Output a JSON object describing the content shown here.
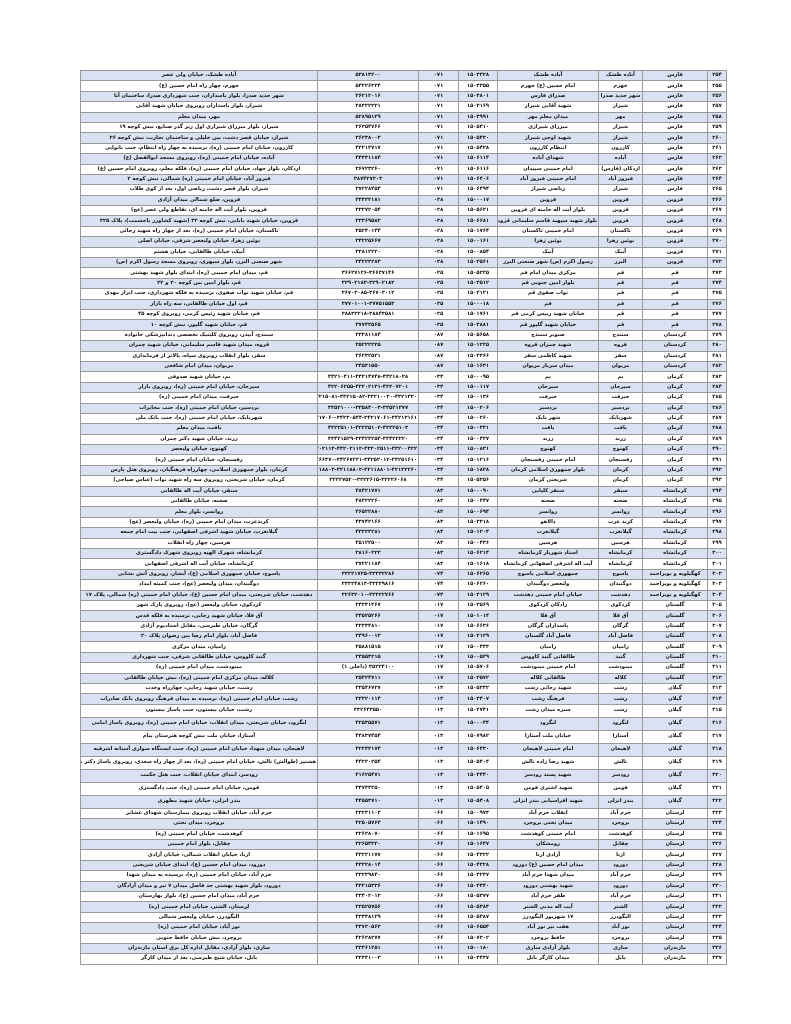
{
  "columns": [
    "row",
    "province",
    "city",
    "branch",
    "branch_code",
    "area_code",
    "phone",
    "address"
  ],
  "colors": {
    "row_shade": "#d9e1f2",
    "border": "#9a9a9a"
  },
  "rows": [
    [
      "۲۵۴",
      "فارس",
      "آباده طشک",
      "آباده طشک",
      "۱۵۰۳۳۲۸",
      "۰۷۱",
      "۵۳۸۱۳۲۰۰",
      "آباده طشک، خیابان ولی عصر"
    ],
    [
      "۲۵۵",
      "فارس",
      "جهرم",
      "امام حسین (ع) جهرم",
      "۱۵۰۳۳۵۵",
      "۰۷۱",
      "۵۴۲۲۶۳۲۴",
      "جهرم، چهار راه امام حسین (ع)"
    ],
    [
      "۲۵۶",
      "فارس",
      "شهر جدید صدرا",
      "صدرای فارس",
      "۱۵۰۳۸۰۱",
      "۰۷۱",
      "۳۶۲۱۲۰۱۶",
      "شهر جدید صدرا، بلوار پاسداران، جنب شهرداری صدرا، ساختمان آتا"
    ],
    [
      "۲۵۷",
      "فارس",
      "شیراز",
      "شهید آقایی شیراز",
      "۱۵۰۳۱۶۹",
      "۰۷۱",
      "۳۸۳۲۲۳۲۱",
      "شیراز، بلوار پاسداران روبروی خیابان شهید آقایی"
    ],
    [
      "۲۵۸",
      "فارس",
      "مهر",
      "میدان معلم مهر",
      "۱۵۰۳۹۹۱",
      "۰۷۱",
      "۵۲۸۹۵۱۲۹",
      "مهر، میدان معلم"
    ],
    [
      "۲۵۹",
      "فارس",
      "شیراز",
      "میرزای شیرازی",
      "۱۵۰۵۴۱۰",
      "۰۷۱",
      "۳۶۳۵۴۷۶۶",
      "شیراز، بلوار میرزای شیرازی اول زیر گذر صنایع، نبش کوچه ۱۹"
    ],
    [
      "۲۶۰",
      "فارس",
      "شیراز",
      "شهید اوجی شیراز",
      "۱۵۰۵۴۳۰",
      "۰۷۱",
      "۳۶۲۳۸۰۰۳",
      "شیراز، خیابان قصر دشت، بین خلیلی و ساختمان تجارت، نبش کوچه ۳۶"
    ],
    [
      "۲۶۱",
      "فارس",
      "کازرون",
      "انتظام کازرون",
      "۱۵۰۵۴۲۸",
      "۰۷۱",
      "۴۲۲۱۳۷۱۷",
      "کازرون، خیابان امام خمینی (ره)، نرسیده به چهار راه انتظام، جنب نانوایی"
    ],
    [
      "۲۶۲",
      "فارس",
      "آباده",
      "شهدای آباده",
      "۱۵۰۶۱۱۴",
      "۰۷۱",
      "۴۴۳۳۱۱۸۴",
      "آباده، خیابان امام خمینی (ره)، روبروی مسجد ابوالفضل (ع)"
    ],
    [
      "۲۶۳",
      "فارس",
      "اردکان (فارس)",
      "امام خمینی سپیدان",
      "۱۵۰۶۱۱۶",
      "۰۷۱",
      "۳۶۷۲۳۲۶۰",
      "اردکان، بلوار جهاد، خیابان امام خمینی (ره)، فلکه معلم، روبروی امام حسین (ع)"
    ],
    [
      "۲۶۴",
      "فارس",
      "فیروز آباد",
      "امام خمینی فیروز آباد",
      "۱۵۰۶۴۰۶",
      "۰۷۱",
      "۳۸۷۴۲۷۲۰۳",
      "فیروز آباد، خیابان امام خمینی (ره) شمالی، نبش کوچه ۲"
    ],
    [
      "۲۶۵",
      "فارس",
      "شیراز",
      "ریاضی شیراز",
      "۱۵۰۶۴۹۴",
      "۰۷۱",
      "۳۷۲۲۸۴۵۴",
      "شیراز، بلوار قصر دشت، ریاضی اول، بعد از کوی طلاب"
    ],
    [
      "۲۶۶",
      "قزوین",
      "قزوین",
      "قزوین",
      "۱۵۰۰۰۱۷",
      "۰۲۸",
      "۳۳۳۲۲۱۸۱",
      "قزوین، ضلع شمالی میدان آزادی"
    ],
    [
      "۲۶۷",
      "قزوین",
      "قزوین",
      "بلوار آیت اله خامنه ای قزوین",
      "۱۵۰۵۶۲۱",
      "۰۲۸",
      "۳۳۳۷۲۰۵۴",
      "قزوین، بلوار آیت اله خامنه ای، تقاطع ولی عصر (عج)"
    ],
    [
      "۲۶۸",
      "قزوین",
      "قزوین",
      "بلوار شهید سپهبد قاسم سلیمانی قزوین",
      "۱۵۰۶۶۸۱",
      "۰۲۸",
      "۳۳۳۶۹۵۸۲",
      "قزوین، خیابان شهید بابایی، نبش کوچه ۳۲ (شهید کشاورز باحشمت)، پلاک ۳۲۵"
    ],
    [
      "۲۶۹",
      "قزوین",
      "تاکستان",
      "امام خمینی تاکستان",
      "۱۵۰۱۷۶۴",
      "۰۲۸",
      "۳۵۲۴۰۱۴۴",
      "تاکستان، خیابان امام خمینی (ره)، بعد از چهار راه شهید رجائی"
    ],
    [
      "۲۷۰",
      "قزوین",
      "بوئین زهرا",
      "بوئین زهرا",
      "۱۵۰۰۱۶۱",
      "۰۲۸",
      "۳۴۲۲۵۶۶۷",
      "بوئین زهرا، خیابان ولیعصر شرقی، خیابان اصلی"
    ],
    [
      "۲۷۱",
      "قزوین",
      "آبیک",
      "آبیک",
      "۱۵۰۰۸۵۴",
      "۰۲۸",
      "۳۳۸۱۲۲۲۰",
      "آبیک، خیابان طالقانی، خیابان هشتم"
    ],
    [
      "۲۷۲",
      "قزوین",
      "البرز",
      "رسول اکرم (ص) شهر صنعتی البرز",
      "۱۵۰۳۵۶۱",
      "۰۲۸",
      "۳۴۲۲۳۲۸۳",
      "شهر صنعتی البرز، بلوار سپهری، روبروی مسجد رسول اکرم (ص)"
    ],
    [
      "۲۷۳",
      "قم",
      "قم",
      "مرکزی میدان امام قم",
      "۱۵۰۵۲۲۵",
      "۰۲۵",
      "۳۶۶۲۷۱۲۶-۳۶۶۳۷۱۴۶",
      "قم، میدان امام خمینی (ره)، ابتدای بلوار شهید بهشتی"
    ],
    [
      "۲۷۴",
      "قم",
      "قم",
      "بلوار امین جنوبی قم",
      "۱۵۰۳۵۱۲",
      "۰۲۵",
      "۳۲۹۰۲۱۸۳-۳۲۹۰۲۱۸۲",
      "قم، بلوار امین بین کوچه ۲۰ و ۲۲"
    ],
    [
      "۲۷۵",
      "قم",
      "قم",
      "نواب صفوی قم",
      "۱۵۰۲۱۲۱",
      "۰۲۵",
      "۳۶۷۰۳۰۸۵-۳۶۷۰۳۰۱۲",
      "قم، خیابان شهید نواب صفوی، نرسیده به فلکه شهرداری، جنب ابزار مهدی"
    ],
    [
      "۲۷۶",
      "قم",
      "قم",
      "قم",
      "۱۵۰۰۰۱۸",
      "۰۲۵",
      "۳۷۷۰۱۰۰۱-۳۷۷۵۱۵۵۳",
      "قم، اول خیابان طالقانی، سه راه بازار"
    ],
    [
      "۲۷۷",
      "قم",
      "قم",
      "خیابان شهید رییس کرمی قم",
      "۱۵۰۱۷۶۱",
      "۰۲۵",
      "۳۸۸۳۲۲۱۸-۳۸۸۴۳۵۸۱",
      "قم، خیابان شهید رئیس کرمی، روبروی کوچه ۴۵"
    ],
    [
      "۲۷۸",
      "قم",
      "قم",
      "خیابان شهید گلپور قم",
      "۱۵۰۳۸۸۱",
      "۰۲۵",
      "۳۷۷۴۲۵۶۵",
      "قم، خیابان شهید گلپور، نبش کوچه ۱۰"
    ],
    [
      "۲۷۹",
      "کردستان",
      "سنندج",
      "صنوبر سنندج",
      "۱۵۰۵۶۵۸",
      "۰۸۷",
      "۳۳۳۸۱۱۸۴",
      "سنندج، آبیدر، روبروی کلینیک تخصصی دندانپزشکی خانواده"
    ],
    [
      "۲۸۰",
      "کردستان",
      "قروه",
      "شهید چمران قروه",
      "۱۵۰۱۲۲۵",
      "۰۸۷",
      "۳۵۲۲۲۲۲۵",
      "قروه، میدان شهید قاسم سلیمانی، خیابان شهید چمران"
    ],
    [
      "۲۸۱",
      "کردستان",
      "سقز",
      "شهید کاظمی سقز",
      "۱۵۰۳۳۶۶",
      "۰۸۷",
      "۳۶۲۳۲۵۲۱",
      "سقز، بلوار انقلاب روبروی سپاه، بالاتر از فرمانداری"
    ],
    [
      "۲۸۲",
      "کردستان",
      "مریوان",
      "میدان سرباز مریوان",
      "۱۵۰۱۶۳۱",
      "۰۸۷",
      "۳۴۵۳۱۵۵۰",
      "مریوان، میدان امام شافعی"
    ],
    [
      "۲۸۳",
      "کرمان",
      "بم",
      "بم",
      "۱۵۰۰۰۹۵",
      "۰۳۴",
      "۴۴۲۱۰۴۱۱-۴۴۲۱۴۷۴۸-۴۴۲۱۸۰۲۸",
      "بم، خیابان شهید صدوقی"
    ],
    [
      "۲۸۴",
      "کرمان",
      "سیرجان",
      "سیرجان",
      "۱۵۰۰۱۱۷",
      "۰۳۴",
      "۴۲۲۰۶۲۵۵-۴۲۲۰۲۱۳۱-۴۲۲۰۷۲۰۱",
      "سیرجان، خیابان امام خمینی (ره)، روبروی بازار"
    ],
    [
      "۲۸۵",
      "کرمان",
      "جیرفت",
      "جیرفت",
      "۱۵۰۰۱۳۶",
      "۰۳۴",
      "۴۳۲۱۵۰۸۱-۴۳۲۱۵۰۸۲-۴۳۲۱۰۰۳۰-۴۳۲۱۳۳۰",
      "جیرفت، میدان امام خمینی (ره)"
    ],
    [
      "۲۸۶",
      "کرمان",
      "بردسیر",
      "بردسیر",
      "۱۵۰۰۲۰۶",
      "۰۳۴",
      "۳۳۵۲۱۰۰۰-۳۳۵۸۳۰۰۳-۳۳۵۲۱۳۷۷",
      "بردسیر، خیابان امام خمینی (ره)، جنب مخابرات"
    ],
    [
      "۲۸۷",
      "کرمان",
      "شهربابک",
      "شهر بابک",
      "۱۵۰۰۲۶۰",
      "۰۳۴",
      "۳۴۲۱۷۰۶۰-۳۴۲۳۰۵۴۴-۳۴۲۱۷۰۶۱-۳۴۲۱۳۱۶۱",
      "شهربابک، خیابان امام خمینی (ره)، جنب بانک ملی"
    ],
    [
      "۲۸۸",
      "کرمان",
      "بافت",
      "بافت",
      "۱۵۰۰۳۳۱",
      "۰۳۴",
      "۴۲۲۲۵۱۰۱-۴۲۲۲۵۱۰۲-۴۲۲۲۵۱۰۳",
      "بافت، میدان معلم"
    ],
    [
      "۲۸۹",
      "کرمان",
      "زرند",
      "زرند",
      "۱۵۰۰۴۳۷",
      "۰۳۴",
      "۳۳۴۲۱۵۲۹-۳۳۴۲۳۲۵۴-۳۳۴۲۲۲۲۰",
      "زرند، خیابان شهید دکتر چمران"
    ],
    [
      "۲۹۰",
      "کرمان",
      "کهنوج",
      "کهنوج",
      "۱۵۰۰۸۳۱",
      "۰۳۴",
      "۴۳۲۰۲۱۱۳-۴۳۲۰۲۱۱۲-۴۳۲۰۲۵۱۱-۴۳۲۰۰۴۲۲",
      "کهنوج، خیابان ولیعصر"
    ],
    [
      "۲۹۱",
      "کرمان",
      "رفسنجان",
      "امام خمینی رفسنجان",
      "۱۵۰۱۲۱۶",
      "۰۳۴",
      "۳۴۲۶۶۳۷۰-۳۴۲۶۷۲۲۱-۳۴۲۵۲۰۱۲-۳۴۲۵۱۶۱۰",
      "رفسنجان، خیابان امام خمینی (ره)"
    ],
    [
      "۲۹۲",
      "کرمان",
      "کرمان",
      "بلوار جمهوری اسلامی کرمان",
      "۱۵۰۱۸۳۸",
      "۰۳۴",
      "۳۲۱۱۸۸۰۳-۳۲۱۱۸۸۰۲-۳۲۱۱۸۸۰۱-۳۲۱۳۲۲۶۰",
      "کرمان، بلوار جمهوری اسلامی، چهارراه فرهنگیان، روبروی هتل پارس"
    ],
    [
      "۲۹۳",
      "کرمان",
      "کرمان",
      "شریعتی کرمان",
      "۱۵۰۵۳۵۶",
      "۰۳۴",
      "۳۲۲۲۷۵۲۰-۳۲۲۲۶۱۵-۳۲۲۲۶۰۶۸",
      "کرمان، خیابان شریعتی، روبروی سه راه شهید نواب (عباس صباحی)"
    ],
    [
      "۲۹۴",
      "کرمانشاه",
      "سنقر",
      "سنقر کلیایی",
      "۱۵۰۰۰۹۰",
      "۰۸۳",
      "۴۸۴۲۱۷۷۱",
      "سنقر، خیابان آیت اله طالقانی"
    ],
    [
      "۲۹۵",
      "کرمانشاه",
      "صحنه",
      "صحنه",
      "۱۵۰۰۴۴۷",
      "۰۸۳",
      "۴۸۳۲۲۲۶۰",
      "صحنه، خیابان طالقانی"
    ],
    [
      "۲۹۶",
      "کرمانشاه",
      "روانسر",
      "روانسر",
      "۱۵۰۰۶۹۴",
      "۰۸۳",
      "۴۶۵۲۲۸۸۰",
      "روانسر، بلوار معلم"
    ],
    [
      "۲۹۷",
      "کرمانشاه",
      "کرند غرب",
      "دالاهو",
      "۱۵۰۳۳۱۸",
      "۰۸۳",
      "۴۳۷۴۲۱۶۶",
      "کرندغرب، میدان امام خمینی (ره)، خیابان ولیعصر (عج)"
    ],
    [
      "۲۹۸",
      "کرمانشاه",
      "گیلانغرب",
      "گیلانغرب",
      "۱۵۰۱۲۰۴",
      "۰۸۳",
      "۴۳۲۲۳۲۸۱",
      "گیلانغرب، خیابان شهید اشرفی اصفهانی، جنب بیت امام جمعه"
    ],
    [
      "۲۹۹",
      "کرمانشاه",
      "هرسین",
      "هرسین",
      "۱۵۰۰۴۳۶",
      "۰۸۳",
      "۴۵۱۲۲۵۰۰",
      "هرسین، چهار راه انقلاب"
    ],
    [
      "۳۰۰",
      "کرمانشاه",
      "کرمانشاه",
      "استاد شهریار کرمانشاه",
      "۱۵۰۶۲۱۴",
      "۰۸۳",
      "۳۸۱۶۰۲۲۲",
      "کرمانشاه، شهرک الهیه روبروی شهرک دادگستری"
    ],
    [
      "۳۰۱",
      "کرمانشاه",
      "کرمانشاه",
      "آیت اله اشرفی اصفهانی کرمانشاه",
      "۱۵۰۱۶۱۸",
      "۰۸۳",
      "۳۷۲۲۱۱۸۴",
      "کرمانشاه، خیابان آیت اله اشرفی اصفهانی"
    ],
    [
      "۳۰۲",
      "کهگیلویه و بویراحمد",
      "یاسوج",
      "جمهوری اسلامی یاسوج",
      "۱۵۰۶۲۶۵",
      "۰۷۴",
      "۳۳۲۲۱۷۲۵-۳۳۳۳۲۲۸۶",
      "یاسوج، خیابان جمهوری اسلامی (ع)، آبشار، روبروی آتش نشانی"
    ],
    [
      "۳۰۳",
      "کهگیلویه و بویراحمد",
      "دوگنبدان",
      "ولیعصر دوگنبدان",
      "۱۵۰۶۲۶۰",
      "۰۷۴",
      "۳۳۳۲۴۸۱۳-۳۳۳۳۹۸۱۶",
      "دوگنبدان، میدان ولیعصر (عج)، جنب کمیته امداد"
    ],
    [
      "۳۰۴",
      "کهگیلویه و بویراحمد",
      "دهدشت",
      "خیابان امام خمینی دهدشت",
      "۱۵۰۳۱۲۹",
      "۰۷۴",
      "۳۲۶۳۲۰۱۰-۳۲۳۲۲۷۶۶",
      "دهدشت، خیابان شریعتی، میدان امام حسین (ع)، خیابان امام خمینی (ره) شمالی، پلاک ۱۷"
    ],
    [
      "۳۰۵",
      "گلستان",
      "کردکوی",
      "رادکان کردکوی",
      "۱۵۰۳۵۶۹",
      "۰۱۷",
      "۳۴۳۳۱۳۶۷",
      "کردکوی، خیابان ولیعصر (عج)، روبروی پارک شهر"
    ],
    [
      "۳۰۶",
      "گلستان",
      "آق قلا",
      "آق قلا",
      "۱۵۰۱۰۱۴",
      "۰۱۷",
      "۳۴۵۲۵۲۶۶",
      "آق قلا، خیابان شهید رجایی، نرسیده به فلکه قدس"
    ],
    [
      "۳۰۷",
      "گلستان",
      "گرگان",
      "پاسداران گرگان",
      "۱۵۰۶۶۳۶",
      "۰۱۷",
      "۳۲۳۳۴۸۱۰",
      "گرگان، خیابان طبرسی، مقابل استادیوم آزادی"
    ],
    [
      "۳۰۸",
      "گلستان",
      "فاضل آباد",
      "فاضل آباد گلستان",
      "۱۵۰۲۱۲۹",
      "۰۱۷",
      "۳۴۹۶۰۰۱۳",
      "فاضل آباد، بلوار امام رضا بین رضوان پلاک ۲۰"
    ],
    [
      "۳۰۹",
      "گلستان",
      "رامیان",
      "رامیان",
      "۱۵۰۰۴۳۳",
      "۰۱۷",
      "۳۵۸۸۱۵۱۵",
      "رامیان، میدان مرکزی"
    ],
    [
      "۳۱۰",
      "گلستان",
      "گنبد",
      "طالقانی گنبد کاووس",
      "۱۵۰۰۵۲۹",
      "۰۱۷",
      "۳۳۵۵۳۲۱۵",
      "گنبد کاووس، خیابان طالقانی شرقی، جنب شهرداری"
    ],
    [
      "۳۱۱",
      "گلستان",
      "مینودشت",
      "امام خمینی مینودشت",
      "۱۵۰۵۷۰۶",
      "۰۱۷",
      "۳۵۲۲۴۱۰۰ (داخلی ۱)",
      "مینودشت، میدان امام خمینی (ره)"
    ],
    [
      "۳۱۲",
      "گلستان",
      "کلاله",
      "طالقانی کلاله",
      "۱۵۰۳۵۷۲",
      "۰۱۷",
      "۳۵۴۲۴۷۱۱",
      "کلاله، میدان مرکزی امام خمینی (ره)، نبش خیابان طالقانی"
    ],
    [
      "۳۱۳",
      "گیلان",
      "رشت",
      "شهید رجایی رشت",
      "۱۵۰۵۳۳۲",
      "۰۱۳",
      "۳۳۵۴۶۷۲۷",
      "رشت، خیابان شهید رجایی، چهارراه وحدت"
    ],
    [
      "۳۱۴",
      "گیلان",
      "رشت",
      "فرهنگ رشت",
      "۱۵۰۳۴۰۷",
      "۰۱۳",
      "۳۳۳۲۰۱۱۴",
      "رشت، خیابان امام خمینی (ره)، نرسیده به میدان فرهنگ روبروی بانک صادرات"
    ],
    [
      "۳۱۵",
      "گیلان",
      "رشت",
      "سبزه میدان رشت",
      "۱۵۰۲۷۳۱",
      "۰۱۳",
      "۳۳۲۶۴۳۵۵۰",
      "رشت، خیابان بیستون، جنب پاساژ بیستون"
    ],
    [
      "۳۱۶",
      "گیلان",
      "لنگرود",
      "لنگرود",
      "۱۵۰۰۰۴۴",
      "۰۱۳",
      "۴۲۵۳۵۵۷۱",
      "لنگرود، خیابان شریعتی، میدان انقلاب، خیابان امام خمینی (ره)، روبروی پاساژ امامی"
    ],
    [
      "۳۱۷",
      "گیلان",
      "آستارا",
      "خیابان ملت آستارا",
      "۱۵۰۷۹۸۲",
      "۰۱۳",
      "۴۴۸۳۷۴۵۴",
      "آستارا، خیابان ملت نبش کوچه هنرستان پیام"
    ],
    [
      "۳۱۸",
      "گیلان",
      "لاهیجان",
      "امام خمینی لاهیجان",
      "۱۵۰۶۴۳۰",
      "۰۱۳",
      "۴۲۲۴۳۱۷۴",
      "لاهیجان، میدان شهدا، خیابان امام خمینی (ره)، جنب ایستگاه سواری آستانه اشرفیه"
    ],
    [
      "۳۱۹",
      "گیلان",
      "تالش",
      "شهید رضا زاده تالش",
      "۱۵۰۵۴۰۴",
      "۰۱۳",
      "۴۴۲۲۰۲۵۴",
      "هشتپر (طوالش) تالش، خیابان امام خمینی (ره)، بعد از چهار راه سعدی، روبروی پاساژ دکتر مومنی"
    ],
    [
      "۳۲۰",
      "گیلان",
      "رودسر",
      "شهید پسند رودسر",
      "۱۵۰۳۴۴۰",
      "۰۱۳",
      "۴۱۶۲۵۴۷۱",
      "رودسر، ابتدای خیابان انقلاب، جنب هتل حکمت"
    ],
    [
      "۳۲۱",
      "گیلان",
      "فومن",
      "شهید اشتری فومن",
      "۱۵۰۵۴۰۵",
      "۰۱۳",
      "۳۴۷۳۳۲۵۰",
      "فومن، خیابان امام خمینی (ره)، جنب دادگستری"
    ],
    [
      "۳۲۲",
      "گیلان",
      "بندر انزلی",
      "شهید افراسیابی بندر انزلی",
      "۱۵۰۵۴۰۸",
      "۰۱۳",
      "۴۴۵۵۳۷۱۰",
      "بندر انزلی، خیابان شهید مطهری"
    ],
    [
      "۳۲۳",
      "لرستان",
      "خرم آباد",
      "انقلاب خرم آباد",
      "۱۵۰۰۹۷۳",
      "۰۶۶",
      "۳۳۲۳۱۱۰۳",
      "خرم آباد، خیابان انقلاب روبروی بیمارستان شهدای عشایر"
    ],
    [
      "۳۲۴",
      "لرستان",
      "بروجرد",
      "میدان تختی بروجرد",
      "۱۵۰۱۴۹۰",
      "۰۶۶",
      "۴۲۵۰۵۷۶۴",
      "بروجرد، میدان تختی"
    ],
    [
      "۳۲۵",
      "لرستان",
      "کوهدشت",
      "امام خمینی کوهدشت",
      "۱۵۰۱۶۹۵",
      "۰۶۶",
      "۳۲۶۲۸۰۷۰",
      "کوهدشت، خیابان امام خمینی (ره)"
    ],
    [
      "۳۲۶",
      "لرستان",
      "چقابل",
      "رومشکان",
      "۱۵۰۱۶۴۷",
      "۰۶۶",
      "۳۲۶۵۴۳۳۰",
      "چقابل، بلوار امام خمینی"
    ],
    [
      "۳۲۷",
      "لرستان",
      "ازنا",
      "آزادی ازنا",
      "۱۵۰۴۳۲۲",
      "۰۶۶",
      "۴۳۲۲۱۱۷۷",
      "ازنا، خیابان انقلاب شمالی، خیابان آزادی"
    ],
    [
      "۳۲۸",
      "لرستان",
      "دورود",
      "میدان امام حسین (ع) دورود",
      "۱۵۰۴۳۲۸",
      "۰۶۶",
      "۴۳۳۲۸۰۱۴",
      "دورود، میدان امام حسین (ع)، ابتدای خیابان شریعتی"
    ],
    [
      "۳۲۹",
      "لرستان",
      "خرم آباد",
      "میدان شهدا خرم آباد",
      "۱۵۰۳۲۳۷",
      "۰۶۶",
      "۳۳۲۳۹۸۴۰",
      "خرم آباد، خیابان امام خمینی (ره)، نرسیده به میدان شهدا"
    ],
    [
      "۳۳۰",
      "لرستان",
      "دورود",
      "شهید بهشتی دورود",
      "۱۵۰۳۴۴۰",
      "۰۶۶",
      "۴۳۲۱۵۳۳۶",
      "دورود، بلوار شهید بهشتی حد فاصل میدان ۷ تیر و میدان آزادگان"
    ],
    [
      "۳۳۱",
      "لرستان",
      "خرم آباد",
      "ظفر خرم آباد",
      "۱۵۰۵۳۷۷",
      "۰۶۶",
      "۳۳۴۰۲۰۱۳",
      "خرم آباد، میدان امام حسین (ع)، بلوار بهارستان"
    ],
    [
      "۳۳۲",
      "لرستان",
      "الشتر",
      "آیت اله مدنی الشتر",
      "۱۵۰۵۳۸۳",
      "۰۶۶",
      "۳۳۵۲۵۷۵۶",
      "لرستان، الشتر، خیابان امام خمینی (ره)"
    ],
    [
      "۳۳۳",
      "لرستان",
      "الیگودرز",
      "۱۷ شهریور الیگودرز",
      "۱۵۰۵۳۸۷",
      "۰۶۶",
      "۴۳۳۳۸۱۲۹",
      "الیگودرز، خیابان ولیعصر شمالی"
    ],
    [
      "۳۳۴",
      "لرستان",
      "نور آباد",
      "هفت تیر نور آباد",
      "۱۵۰۶۵۵۳",
      "۰۶۶",
      "۳۳۷۲۰۵۶۳",
      "نور آباد، خیابان امام خمینی (ره)"
    ],
    [
      "۳۳۵",
      "لرستان",
      "بروجرد",
      "حافظ بروجرد",
      "۱۵۰۷۳۰۲",
      "۰۶۶",
      "۴۲۶۲۸۲۷۷",
      "بروجرد، نبش خیابان حافظ جنوبی"
    ],
    [
      "۳۳۶",
      "مازندران",
      "ساری",
      "بلوار آزادی ساری",
      "۱۵۰۰۱۸۰",
      "۰۱۱",
      "۳۳۳۶۱۲۵۱",
      "ساری، بلوار آزادی، مقابل اداره کل برق استان مازندران"
    ],
    [
      "۳۳۷",
      "مازندران",
      "بابل",
      "میدان کارگر بابل",
      "۱۵۰۳۴۳۷",
      "۰۱۱",
      "۳۲۳۳۱۰۰۳",
      "بابل، خیابان شیخ طبرسی، بعد از میدان کارگر"
    ]
  ]
}
